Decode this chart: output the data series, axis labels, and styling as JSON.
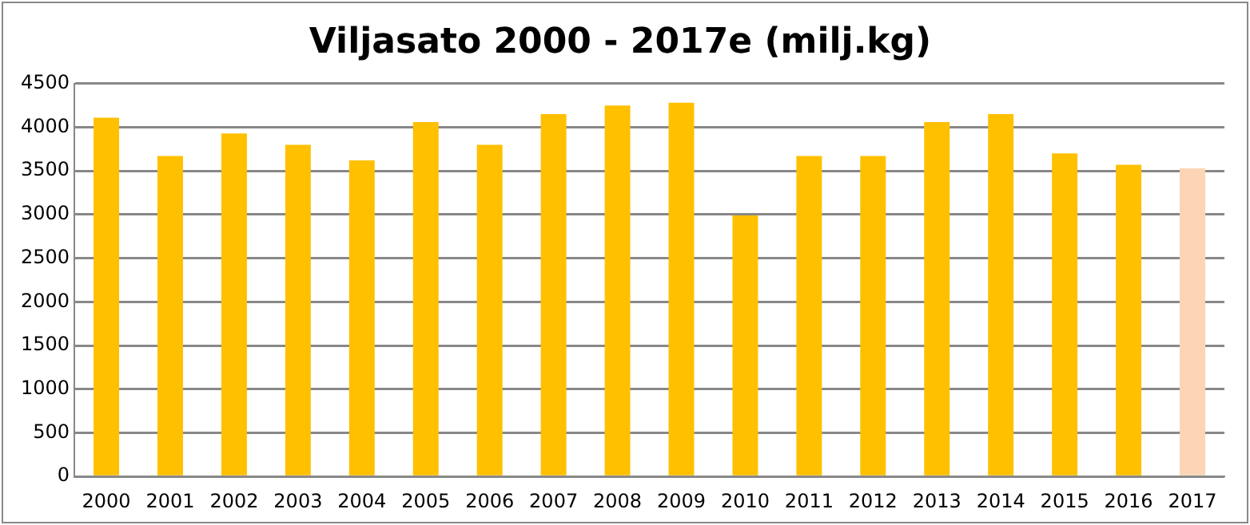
{
  "chart_data": {
    "type": "bar",
    "title": "Viljasato 2000 - 2017e (milj.kg)",
    "categories": [
      "2000",
      "2001",
      "2002",
      "2003",
      "2004",
      "2005",
      "2006",
      "2007",
      "2008",
      "2009",
      "2010",
      "2011",
      "2012",
      "2013",
      "2014",
      "2015",
      "2016",
      "2017"
    ],
    "values": [
      4110,
      3670,
      3930,
      3800,
      3620,
      4060,
      3800,
      4150,
      4250,
      4280,
      2990,
      3670,
      3670,
      4060,
      4150,
      3700,
      3570,
      3530
    ],
    "colors": [
      "#ffc000",
      "#ffc000",
      "#ffc000",
      "#ffc000",
      "#ffc000",
      "#ffc000",
      "#ffc000",
      "#ffc000",
      "#ffc000",
      "#ffc000",
      "#ffc000",
      "#ffc000",
      "#ffc000",
      "#ffc000",
      "#ffc000",
      "#ffc000",
      "#ffc000",
      "#fbd5b5"
    ],
    "ylim": [
      0,
      4500
    ],
    "yticks": [
      0,
      500,
      1000,
      1500,
      2000,
      2500,
      3000,
      3500,
      4000,
      4500
    ],
    "grid": "y"
  }
}
